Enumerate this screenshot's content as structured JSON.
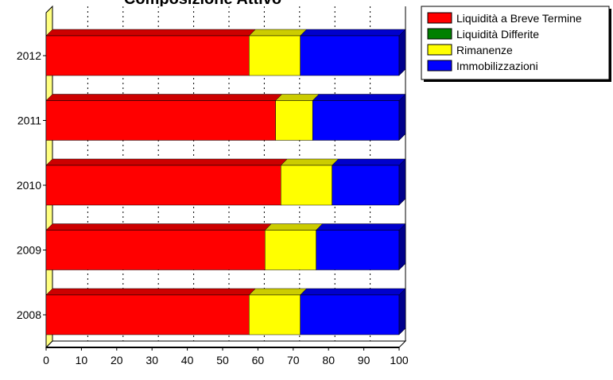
{
  "chart_data": {
    "type": "bar",
    "orientation": "horizontal",
    "stacked": true,
    "three_d": true,
    "title": "Composizione Attivo",
    "categories": [
      "2012",
      "2011",
      "2010",
      "2009",
      "2008"
    ],
    "series": [
      {
        "name": "Liquidità a Breve Termine",
        "color": "#ff0000",
        "values": [
          57.5,
          65,
          66.5,
          62,
          57.5
        ]
      },
      {
        "name": "Liquidità Differite",
        "color": "#008000",
        "values": [
          0,
          0,
          0,
          0,
          0
        ]
      },
      {
        "name": "Rimanenze",
        "color": "#ffff00",
        "values": [
          14.5,
          10.5,
          14.5,
          14.5,
          14.5
        ]
      },
      {
        "name": "Immobilizzazioni",
        "color": "#0000ff",
        "values": [
          28,
          24.5,
          19,
          23.5,
          28
        ]
      }
    ],
    "x_ticks": [
      "0",
      "10",
      "20",
      "30",
      "40",
      "50",
      "60",
      "70",
      "80",
      "90",
      "100"
    ],
    "xlim": [
      0,
      100
    ],
    "grid": "vertical-dashed",
    "legend_position": "top-right"
  }
}
